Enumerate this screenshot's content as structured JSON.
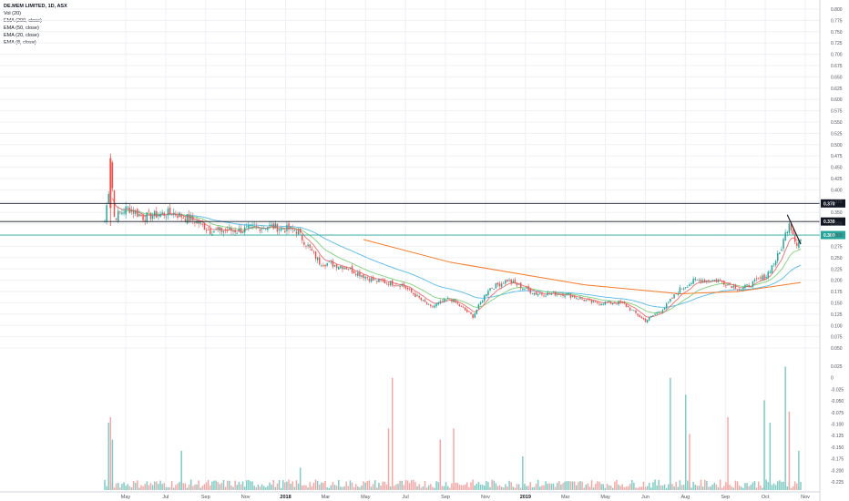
{
  "legend": {
    "title": "DE.MEM LIMITED, 1D, ASX",
    "lines": [
      "Vol (20)",
      "EMA (200, close)",
      "EMA (50, close)",
      "EMA (20, close)",
      "EMA (8, close)"
    ]
  },
  "price_labels": [
    {
      "text": "0.370",
      "value": 0.37,
      "bg": "#131722",
      "fg": "#ffffff"
    },
    {
      "text": "0.330",
      "value": 0.33,
      "bg": "#131722",
      "fg": "#ffffff"
    },
    {
      "text": "0.300",
      "value": 0.3,
      "bg": "#26a69a",
      "fg": "#ffffff"
    }
  ],
  "colors": {
    "up": "#26a69a",
    "down": "#ef5350",
    "ema200": "#f57c2a",
    "ema50": "#58b9e8",
    "ema20": "#7fd17a",
    "ema8": "#ef6c6c",
    "grid": "#eef0f4",
    "hline": "#131722",
    "hline_teal": "#26a69a",
    "trendline": "#131722"
  },
  "chart_data": [
    {
      "type": "candlestick",
      "title": "DE.MEM LIMITED, 1D, ASX",
      "ylim": [
        0.03,
        0.81
      ],
      "y_ticks": [
        "0.800",
        "0.775",
        "0.750",
        "0.725",
        "0.700",
        "0.675",
        "0.650",
        "0.625",
        "0.600",
        "0.575",
        "0.550",
        "0.525",
        "0.500",
        "0.475",
        "0.450",
        "0.425",
        "0.400",
        "0.375",
        "0.350",
        "0.325",
        "0.300",
        "0.275",
        "0.250",
        "0.225",
        "0.200",
        "0.175",
        "0.150",
        "0.125",
        "0.100",
        "0.075",
        "0.050"
      ],
      "x_ticks": [
        {
          "label": "May",
          "bold": false
        },
        {
          "label": "Jul",
          "bold": false
        },
        {
          "label": "Sep",
          "bold": false
        },
        {
          "label": "Nov",
          "bold": false
        },
        {
          "label": "2018",
          "bold": true
        },
        {
          "label": "Mar",
          "bold": false
        },
        {
          "label": "May",
          "bold": false
        },
        {
          "label": "Jul",
          "bold": false
        },
        {
          "label": "Sep",
          "bold": false
        },
        {
          "label": "Nov",
          "bold": false
        },
        {
          "label": "2019",
          "bold": true
        },
        {
          "label": "Mar",
          "bold": false
        },
        {
          "label": "May",
          "bold": false
        },
        {
          "label": "Jun",
          "bold": false
        },
        {
          "label": "Aug",
          "bold": false
        },
        {
          "label": "Sep",
          "bold": false
        },
        {
          "label": "Oct",
          "bold": false
        },
        {
          "label": "Nov",
          "bold": false
        }
      ],
      "horizontal_levels": [
        0.37,
        0.33,
        0.3
      ],
      "price_path": [
        {
          "i": 0,
          "p": 0.33
        },
        {
          "i": 2,
          "p": 0.4
        },
        {
          "i": 3,
          "p": 0.47
        },
        {
          "i": 5,
          "p": 0.34
        },
        {
          "i": 12,
          "p": 0.36
        },
        {
          "i": 20,
          "p": 0.34
        },
        {
          "i": 35,
          "p": 0.35
        },
        {
          "i": 48,
          "p": 0.33
        },
        {
          "i": 55,
          "p": 0.31
        },
        {
          "i": 70,
          "p": 0.31
        },
        {
          "i": 85,
          "p": 0.32
        },
        {
          "i": 100,
          "p": 0.31
        },
        {
          "i": 112,
          "p": 0.24
        },
        {
          "i": 125,
          "p": 0.23
        },
        {
          "i": 140,
          "p": 0.2
        },
        {
          "i": 155,
          "p": 0.19
        },
        {
          "i": 170,
          "p": 0.14
        },
        {
          "i": 180,
          "p": 0.16
        },
        {
          "i": 192,
          "p": 0.12
        },
        {
          "i": 200,
          "p": 0.18
        },
        {
          "i": 210,
          "p": 0.2
        },
        {
          "i": 225,
          "p": 0.17
        },
        {
          "i": 240,
          "p": 0.17
        },
        {
          "i": 255,
          "p": 0.15
        },
        {
          "i": 270,
          "p": 0.15
        },
        {
          "i": 282,
          "p": 0.11
        },
        {
          "i": 292,
          "p": 0.14
        },
        {
          "i": 300,
          "p": 0.18
        },
        {
          "i": 308,
          "p": 0.2
        },
        {
          "i": 320,
          "p": 0.2
        },
        {
          "i": 332,
          "p": 0.18
        },
        {
          "i": 345,
          "p": 0.21
        },
        {
          "i": 352,
          "p": 0.26
        },
        {
          "i": 357,
          "p": 0.33
        },
        {
          "i": 361,
          "p": 0.28
        },
        {
          "i": 363,
          "p": 0.29
        }
      ],
      "ema200": [
        {
          "i": 135,
          "p": 0.29
        },
        {
          "i": 180,
          "p": 0.24
        },
        {
          "i": 250,
          "p": 0.19
        },
        {
          "i": 300,
          "p": 0.17
        },
        {
          "i": 330,
          "p": 0.175
        },
        {
          "i": 363,
          "p": 0.195
        }
      ],
      "series": [
        {
          "name": "EMA (200, close)",
          "color": "#f57c2a"
        },
        {
          "name": "EMA (50, close)",
          "color": "#58b9e8"
        },
        {
          "name": "EMA (20, close)",
          "color": "#7fd17a"
        },
        {
          "name": "EMA (8, close)",
          "color": "#ef6c6c"
        }
      ],
      "trendline": {
        "from": {
          "i": 356,
          "p": 0.345
        },
        "to": {
          "i": 363,
          "p": 0.28
        }
      },
      "n_bars": 364
    },
    {
      "type": "bar",
      "series": [
        {
          "name": "Vol (20)"
        }
      ],
      "y_ticks": [
        "0.025",
        "0",
        "-0.025",
        "-0.050",
        "-0.075",
        "-0.100",
        "-0.125",
        "-0.150",
        "-0.175",
        "-0.200",
        "-0.225"
      ],
      "spikes": [
        {
          "i": 2,
          "v": 0.6,
          "up": true
        },
        {
          "i": 3,
          "v": 0.65,
          "up": false
        },
        {
          "i": 4,
          "v": 0.45,
          "up": true
        },
        {
          "i": 40,
          "v": 0.35,
          "up": true
        },
        {
          "i": 102,
          "v": 0.2,
          "up": true
        },
        {
          "i": 150,
          "v": 1.0,
          "up": false
        },
        {
          "i": 148,
          "v": 0.55,
          "up": false
        },
        {
          "i": 175,
          "v": 0.45,
          "up": false
        },
        {
          "i": 182,
          "v": 0.55,
          "up": false
        },
        {
          "i": 218,
          "v": 0.3,
          "up": true
        },
        {
          "i": 295,
          "v": 1.0,
          "up": true
        },
        {
          "i": 303,
          "v": 0.85,
          "up": true
        },
        {
          "i": 305,
          "v": 0.5,
          "up": false
        },
        {
          "i": 325,
          "v": 0.65,
          "up": false
        },
        {
          "i": 344,
          "v": 0.8,
          "up": true
        },
        {
          "i": 347,
          "v": 0.6,
          "up": true
        },
        {
          "i": 355,
          "v": 1.1,
          "up": true
        },
        {
          "i": 357,
          "v": 0.7,
          "up": false
        },
        {
          "i": 362,
          "v": 0.35,
          "up": true
        }
      ]
    }
  ]
}
